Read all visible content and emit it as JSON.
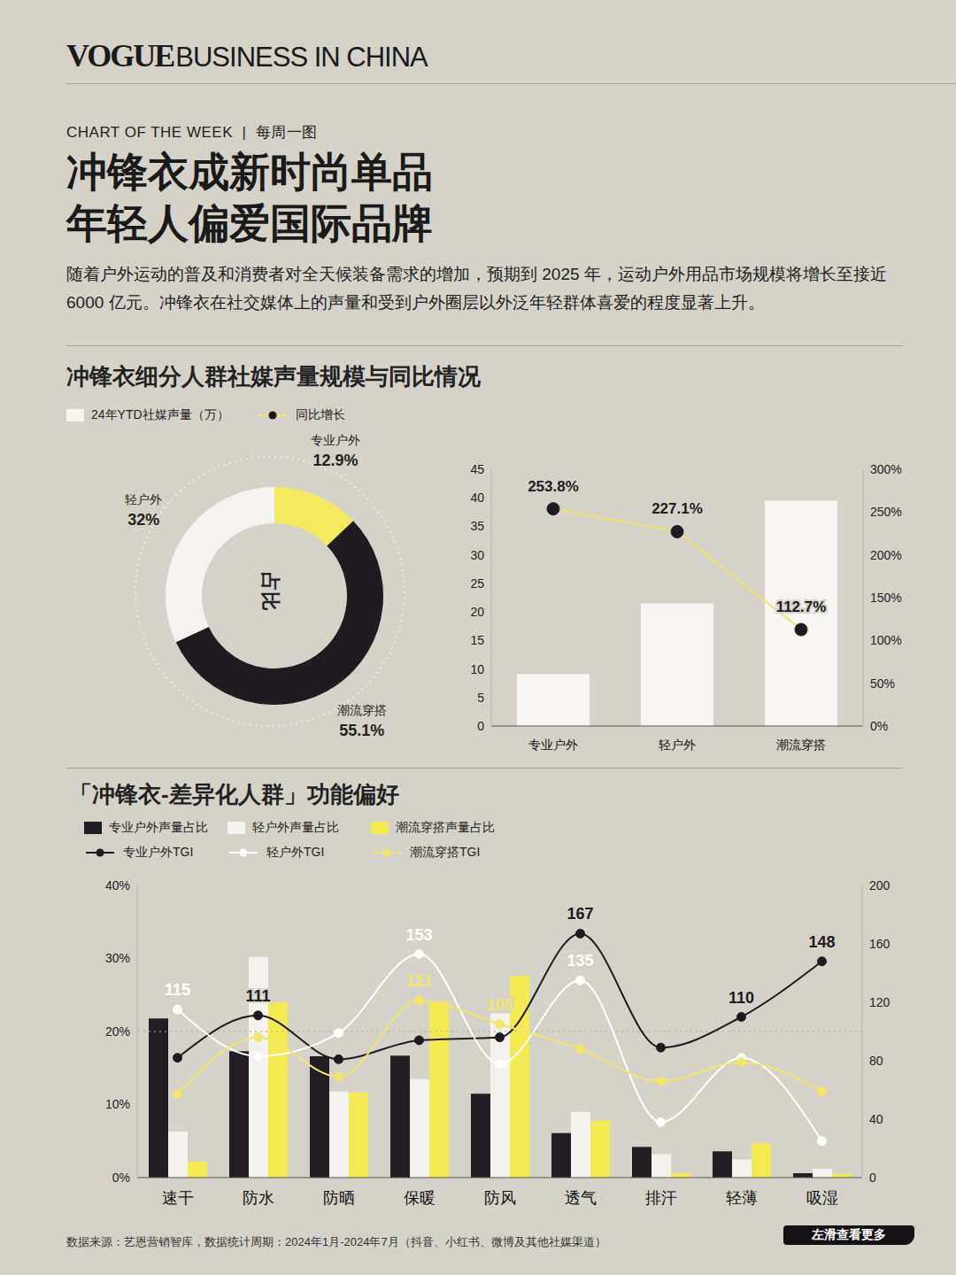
{
  "header": {
    "brand": "VOGUE",
    "brand_suffix": "BUSINESS IN CHINA",
    "kicker": "CHART OF THE WEEK  |  每周一图",
    "title_lines": [
      "冲锋衣成新时尚单品",
      "年轻人偏爱国际品牌"
    ],
    "intro": "随着户外运动的普及和消费者对全天候装备需求的增加，预期到 2025 年，运动户外用品市场规模将增长至接近 6000 亿元。冲锋衣在社交媒体上的声量和受到户外圈层以外泛年轻群体喜爱的程度显著上升。"
  },
  "chart_data": [
    {
      "type": "pie",
      "title": "冲锋衣细分人群社媒声量规模与同比情况",
      "center_label": "占比",
      "categories": [
        "专业户外",
        "潮流穿搭",
        "轻户外"
      ],
      "values": [
        12.9,
        55.1,
        32
      ],
      "value_labels": [
        "12.9%",
        "55.1%",
        "32%"
      ],
      "colors": [
        "#f2ea5c",
        "#1f1b21",
        "#f4f3ef"
      ],
      "data_labels": true
    },
    {
      "type": "bar",
      "categories": [
        "专业户外",
        "轻户外",
        "潮流穿搭"
      ],
      "series": [
        {
          "name": "24年YTD社媒声量（万）",
          "type": "bar",
          "color": "#f6f5f2",
          "values": [
            9.1,
            21.5,
            39.5
          ]
        },
        {
          "name": "同比增长",
          "type": "line",
          "axis": "y2",
          "color": "#eee46a",
          "marker": "circle",
          "line_style": "solid",
          "data_labels": true,
          "values": [
            253.8,
            227.1,
            112.7
          ],
          "value_labels": [
            "253.8%",
            "227.1%",
            "112.7%"
          ]
        }
      ],
      "ylim": [
        0,
        45
      ],
      "yticks": [
        0,
        5,
        10,
        15,
        20,
        25,
        30,
        35,
        40,
        45
      ],
      "y2lim": [
        0,
        300
      ],
      "y2ticks": [
        {
          "value": 0,
          "label": "0%"
        },
        {
          "value": 50,
          "label": "50%"
        },
        {
          "value": 100,
          "label": "100%"
        },
        {
          "value": 150,
          "label": "150%"
        },
        {
          "value": 200,
          "label": "200%"
        },
        {
          "value": 250,
          "label": "250%"
        },
        {
          "value": 300,
          "label": "300%"
        }
      ],
      "legend": "top-left",
      "grid": false
    },
    {
      "type": "bar",
      "title": "「冲锋衣-差异化人群」功能偏好",
      "categories": [
        "速干",
        "防水",
        "防晒",
        "保暖",
        "防风",
        "透气",
        "排汗",
        "轻薄",
        "吸湿"
      ],
      "series": [
        {
          "name": "专业户外声量占比",
          "type": "bar",
          "color": "#221e24",
          "values": [
            21.8,
            17.3,
            16.6,
            16.7,
            11.5,
            6.1,
            4.2,
            3.6,
            0.6
          ]
        },
        {
          "name": "轻户外声量占比",
          "type": "bar",
          "color": "#f3f2ee",
          "values": [
            6.3,
            30.2,
            11.8,
            13.5,
            22.5,
            9.0,
            3.2,
            2.5,
            1.2
          ]
        },
        {
          "name": "潮流穿搭声量占比",
          "type": "bar",
          "color": "#f2ea4e",
          "values": [
            2.2,
            24.0,
            11.6,
            24.1,
            27.6,
            7.8,
            0.6,
            4.7,
            0.5
          ]
        },
        {
          "name": "专业户外TGI",
          "type": "line",
          "axis": "y2",
          "color": "#1e1a1f",
          "marker": "circle",
          "line_style": "smooth",
          "data_labels": true,
          "values": [
            82,
            111,
            81,
            94,
            96,
            167,
            89,
            110,
            148
          ],
          "value_labels": [
            null,
            "111",
            null,
            null,
            null,
            "167",
            null,
            "110",
            "148"
          ]
        },
        {
          "name": "轻户外TGI",
          "type": "line",
          "axis": "y2",
          "color": "#ffffff",
          "marker": "circle",
          "line_style": "smooth",
          "data_labels": true,
          "values": [
            115,
            83,
            99,
            153,
            78,
            135,
            38,
            82,
            25
          ],
          "value_labels": [
            "115",
            null,
            null,
            "153",
            null,
            "135",
            null,
            null,
            null
          ]
        },
        {
          "name": "潮流穿搭TGI",
          "type": "line",
          "axis": "y2",
          "color": "#efe66c",
          "marker": "circle",
          "line_style": "smooth",
          "data_labels": true,
          "values": [
            57,
            96,
            69,
            121,
            105,
            88,
            66,
            79,
            59
          ],
          "value_labels": [
            null,
            null,
            null,
            "121",
            "105",
            null,
            null,
            null,
            null
          ]
        }
      ],
      "ylim": [
        0,
        40
      ],
      "yticks": [
        {
          "value": 0,
          "label": "0%"
        },
        {
          "value": 10,
          "label": "10%"
        },
        {
          "value": 20,
          "label": "20%"
        },
        {
          "value": 30,
          "label": "30%"
        },
        {
          "value": 40,
          "label": "40%"
        }
      ],
      "y2lim": [
        0,
        200
      ],
      "y2ticks": [
        0,
        40,
        80,
        120,
        160,
        200
      ],
      "reference_line": {
        "value": 100,
        "axis": "y2"
      },
      "legend": "top-left",
      "grid": false
    }
  ],
  "footer": {
    "source": "数据来源：艺恩营销智库，数据统计周期：2024年1月-2024年7月（抖音、小红书、微博及其他社媒渠道）",
    "swipe_hint": "左滑查看更多"
  }
}
